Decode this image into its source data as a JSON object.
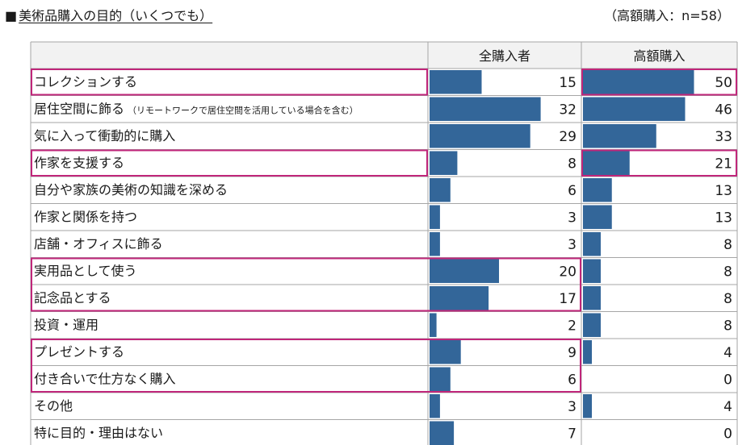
{
  "header": {
    "square": "■",
    "title": "美術品購入の目的（いくつでも）",
    "note": "（高額購入：n=58）"
  },
  "chart_data": {
    "type": "table",
    "title": "美術品購入の目的（いくつでも）",
    "sample_note": "（高額購入：n=58）",
    "columns": [
      "全購入者",
      "高額購入"
    ],
    "rows": [
      {
        "label": "コレクションする",
        "values": [
          15,
          50
        ]
      },
      {
        "label": "居住空間に飾る",
        "sublabel": "（リモートワークで居住空間を活用している場合を含む）",
        "values": [
          32,
          46
        ]
      },
      {
        "label": "気に入って衝動的に購入",
        "values": [
          29,
          33
        ]
      },
      {
        "label": "作家を支援する",
        "values": [
          8,
          21
        ]
      },
      {
        "label": "自分や家族の美術の知識を深める",
        "values": [
          6,
          13
        ]
      },
      {
        "label": "作家と関係を持つ",
        "values": [
          3,
          13
        ]
      },
      {
        "label": "店舗・オフィスに飾る",
        "values": [
          3,
          8
        ]
      },
      {
        "label": "実用品として使う",
        "values": [
          20,
          8
        ]
      },
      {
        "label": "記念品とする",
        "values": [
          17,
          8
        ]
      },
      {
        "label": "投資・運用",
        "values": [
          2,
          8
        ]
      },
      {
        "label": "プレゼントする",
        "values": [
          9,
          4
        ]
      },
      {
        "label": "付き合いで仕方なく購入",
        "values": [
          6,
          0
        ]
      },
      {
        "label": "その他",
        "values": [
          3,
          4
        ]
      },
      {
        "label": "特に目的・理由はない",
        "values": [
          7,
          0
        ]
      }
    ],
    "highlights": [
      {
        "from_row": 0,
        "to_row": 0,
        "columns": [
          0,
          1
        ]
      },
      {
        "from_row": 3,
        "to_row": 3,
        "columns": [
          0,
          1
        ]
      },
      {
        "from_row": 7,
        "to_row": 8,
        "columns": [
          0
        ]
      },
      {
        "from_row": 10,
        "to_row": 11,
        "columns": [
          0
        ]
      }
    ],
    "colors": {
      "bar": "#336699",
      "highlight": "#c0267a",
      "header_bg": "#f2f2f2",
      "grid": "#a6a6a6"
    }
  }
}
